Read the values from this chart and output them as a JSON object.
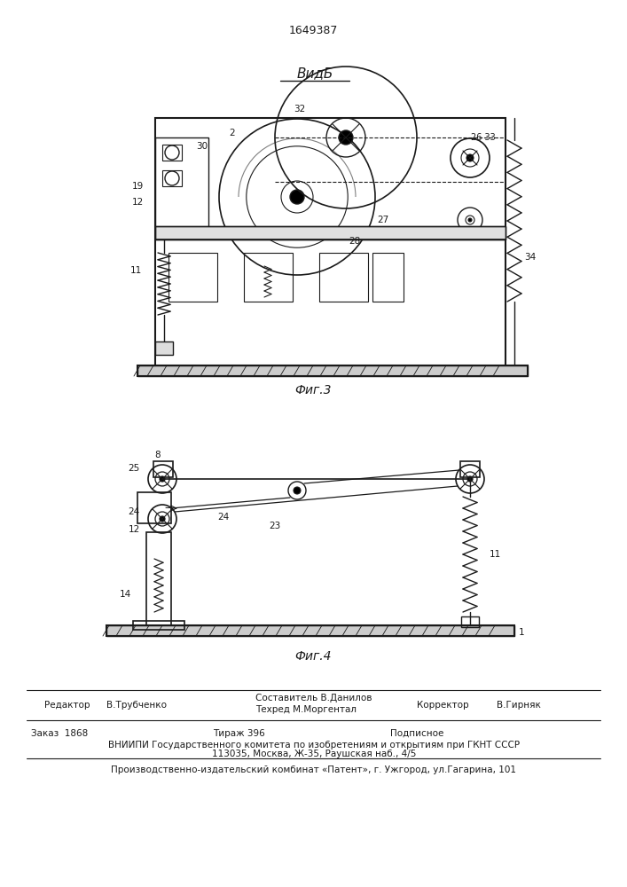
{
  "patent_number": "1649387",
  "fig3_label": "Фиг.3",
  "fig4_label": "Фиг.4",
  "vid_b_label": "ВидБ",
  "editor_label": "Редактор",
  "editor_name": "В.Трубченко",
  "composer_label": "Составитель В.Данилов",
  "techred_label": "Техред М.Моргентал",
  "corrector_label": "Корректор",
  "corrector_name": "В.Гирняк",
  "order_line": "Заказ  1868",
  "tirazh_line": "Тираж 396",
  "podpisnoe_line": "Подписное",
  "vniip_line": "ВНИИПИ Государственного комитета по изобретениям и открытиям при ГКНТ СССР",
  "address_line": "113035, Москва, Ж-35, Раушская наб., 4/5",
  "production_line": "Производственно-издательский комбинат «Патент», г. Ужгород, ул.Гагарина, 101",
  "bg_color": "#ffffff",
  "line_color": "#1a1a1a",
  "text_color": "#1a1a1a"
}
